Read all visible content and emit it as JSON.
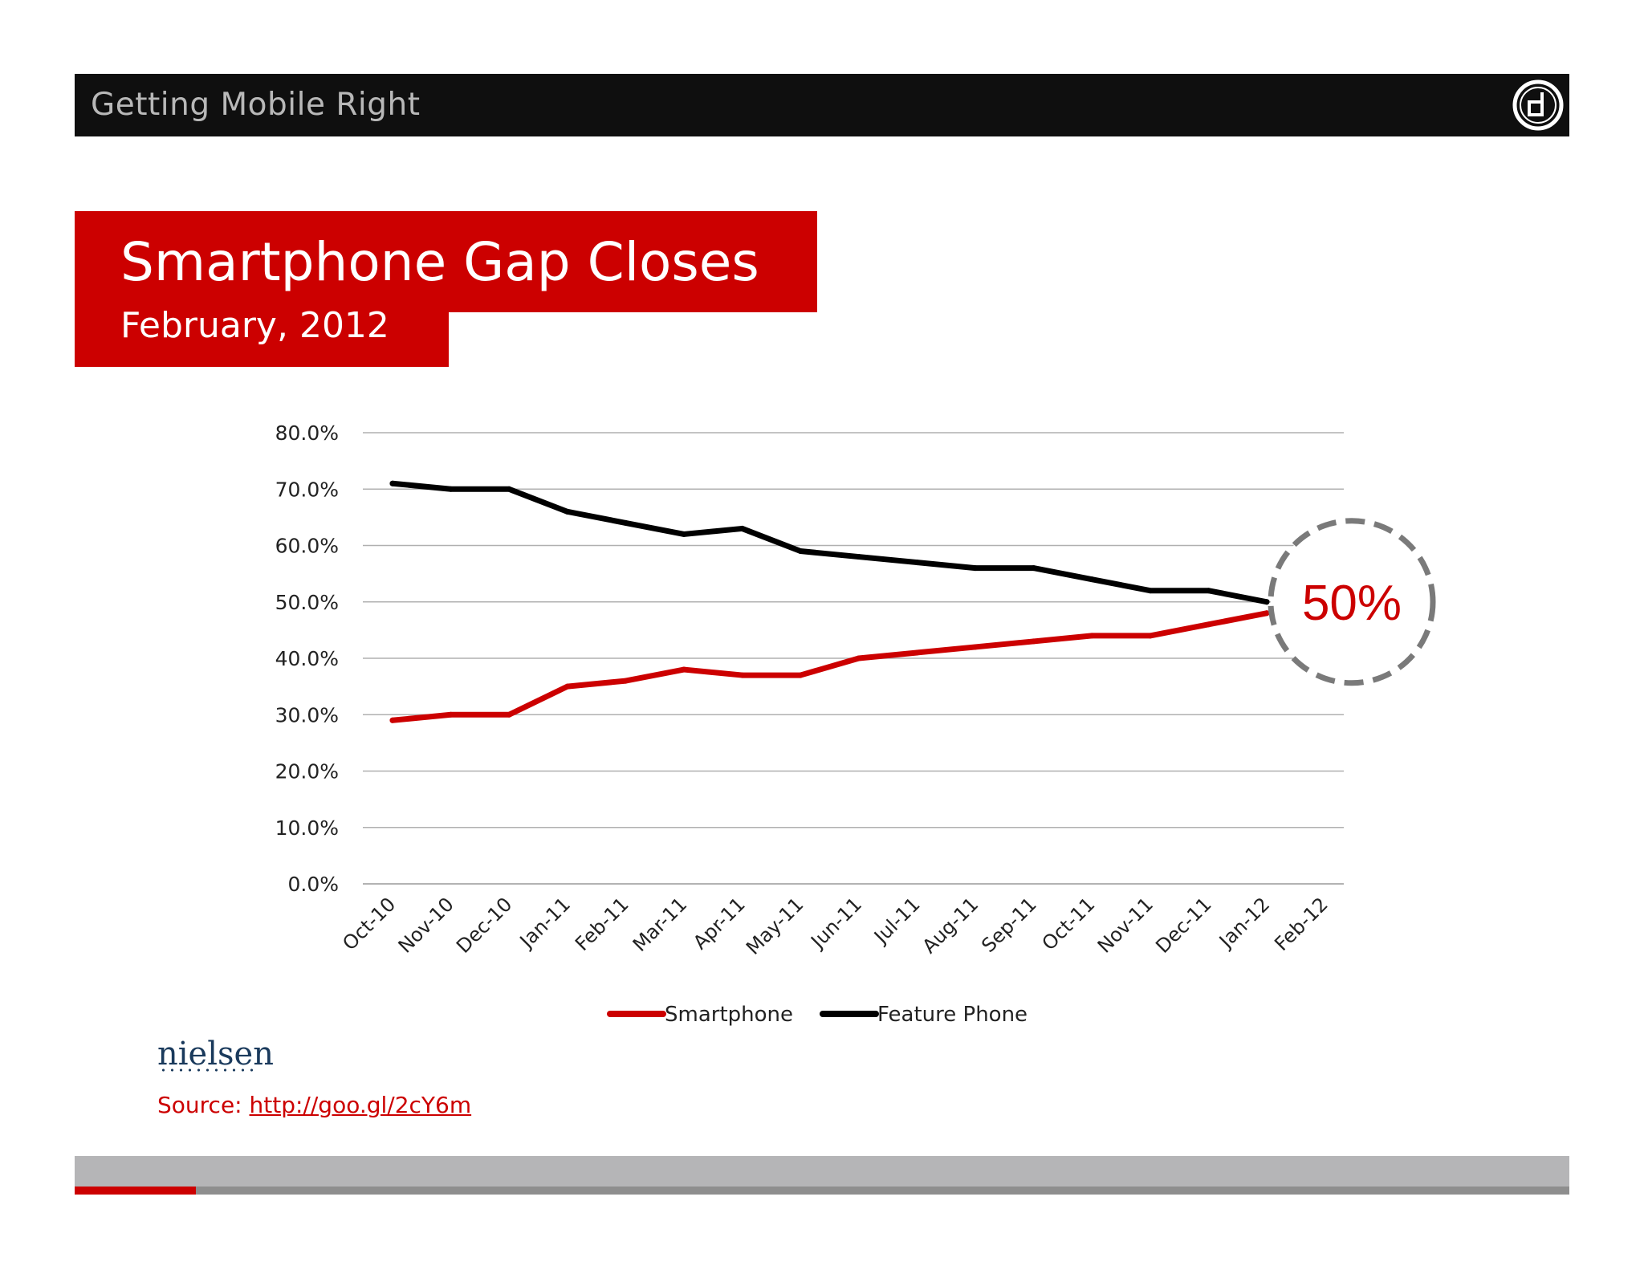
{
  "header": {
    "title": "Getting Mobile Right",
    "logo_icon": "d-logo-icon"
  },
  "slide": {
    "title": "Smartphone Gap Closes",
    "subtitle": "February, 2012"
  },
  "colors": {
    "accent": "#cc0000",
    "header_bg": "#0f0f0f",
    "feature_phone": "#000000",
    "smartphone": "#cc0000",
    "highlight_circle": "#7a7a7a"
  },
  "chart_data": {
    "type": "line",
    "title": "",
    "xlabel": "",
    "ylabel": "",
    "categories": [
      "Oct-10",
      "Nov-10",
      "Dec-10",
      "Jan-11",
      "Feb-11",
      "Mar-11",
      "Apr-11",
      "May-11",
      "Jun-11",
      "Jul-11",
      "Aug-11",
      "Sep-11",
      "Oct-11",
      "Nov-11",
      "Dec-11",
      "Jan-12",
      "Feb-12"
    ],
    "y_ticks": [
      "0.0%",
      "10.0%",
      "20.0%",
      "30.0%",
      "40.0%",
      "50.0%",
      "60.0%",
      "70.0%",
      "80.0%"
    ],
    "ylim": [
      0,
      80
    ],
    "grid": true,
    "legend_position": "bottom",
    "series": [
      {
        "name": "Smartphone",
        "color": "#cc0000",
        "values": [
          29,
          30,
          30,
          35,
          36,
          38,
          37,
          37,
          40,
          41,
          42,
          43,
          44,
          44,
          46,
          48,
          null
        ]
      },
      {
        "name": "Feature Phone",
        "color": "#000000",
        "values": [
          71,
          70,
          70,
          66,
          64,
          62,
          63,
          59,
          58,
          57,
          56,
          56,
          54,
          52,
          52,
          50,
          null
        ]
      }
    ],
    "annotation": {
      "text": "50%",
      "at_category": "Jan-12",
      "value": 50
    }
  },
  "logo_text": "nielsen",
  "source": {
    "label": "Source: ",
    "link_text": "http://goo.gl/2cY6m"
  }
}
